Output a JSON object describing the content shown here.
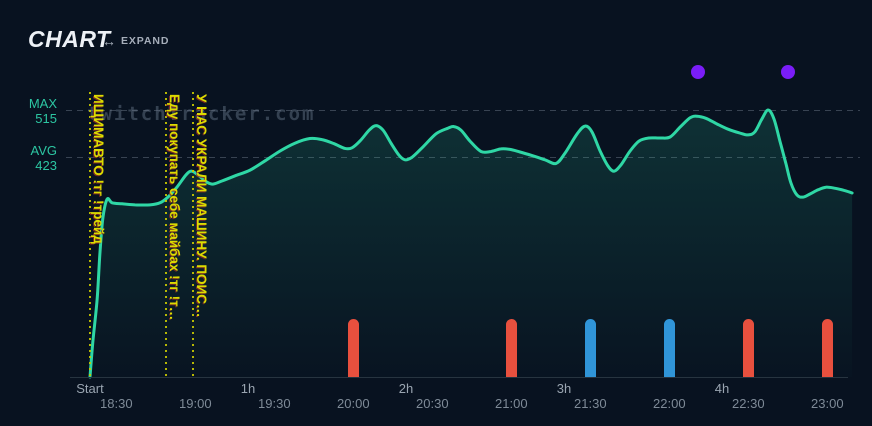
{
  "header": {
    "title": "CHART",
    "expand_label": "EXPAND",
    "expand_icon": "left-right-arrow"
  },
  "watermark": "twitchTracker.com",
  "colors": {
    "background": "#081220",
    "line": "#2fd7a5",
    "teal_label": "#2cc6a2",
    "yellow": "#dcdc00",
    "red": "#e8503e",
    "blue": "#3095d8",
    "purple": "#7a1df7"
  },
  "y_axis": {
    "max_label": "MAX",
    "max_value": "515",
    "avg_label": "AVG",
    "avg_value": "423"
  },
  "x_axis": {
    "hour_ticks": [
      {
        "label": "Start",
        "m": 0
      },
      {
        "label": "1h",
        "m": 60
      },
      {
        "label": "2h",
        "m": 120
      },
      {
        "label": "3h",
        "m": 180
      },
      {
        "label": "4h",
        "m": 240
      }
    ],
    "time_ticks": [
      {
        "label": "18:30",
        "m": 10
      },
      {
        "label": "19:00",
        "m": 40
      },
      {
        "label": "19:30",
        "m": 70
      },
      {
        "label": "20:00",
        "m": 100
      },
      {
        "label": "20:30",
        "m": 130
      },
      {
        "label": "21:00",
        "m": 160
      },
      {
        "label": "21:30",
        "m": 190
      },
      {
        "label": "22:00",
        "m": 220
      },
      {
        "label": "22:30",
        "m": 250
      },
      {
        "label": "23:00",
        "m": 280
      }
    ]
  },
  "annotations": [
    {
      "m": 0,
      "text": "ИЩИМАВТО !тг !трейд"
    },
    {
      "m": 29,
      "text": "Еду покупать себе майбах !тг !т…"
    },
    {
      "m": 39,
      "text": "У НАС УКРАЛИ МАШИНУ. ПОИС…"
    }
  ],
  "markers": [
    {
      "m": 100,
      "color": "red"
    },
    {
      "m": 160,
      "color": "red"
    },
    {
      "m": 190,
      "color": "blue"
    },
    {
      "m": 220,
      "color": "blue"
    },
    {
      "m": 250,
      "color": "red"
    },
    {
      "m": 280,
      "color": "red"
    }
  ],
  "dots": [
    {
      "m": 231
    },
    {
      "m": 265
    }
  ],
  "chart_data": {
    "type": "area",
    "title": "CHART",
    "series_name": "viewers",
    "x_unit": "minutes_from_stream_start",
    "y_unit": "viewers",
    "xlim": [
      0,
      290
    ],
    "ylim": [
      0,
      530
    ],
    "max_line": 515,
    "avg_line": 423,
    "grid": "dashed max/avg horizontal lines",
    "legend": "none",
    "points": [
      [
        0,
        0
      ],
      [
        1.1,
        69
      ],
      [
        2.7,
        149
      ],
      [
        3.8,
        241
      ],
      [
        4.9,
        307
      ],
      [
        6.5,
        343
      ],
      [
        8.4,
        336
      ],
      [
        12.2,
        334
      ],
      [
        17.1,
        332
      ],
      [
        22.8,
        332
      ],
      [
        26.6,
        336
      ],
      [
        29.6,
        347
      ],
      [
        33,
        366
      ],
      [
        36.5,
        390
      ],
      [
        38.7,
        397
      ],
      [
        41.4,
        388
      ],
      [
        44.4,
        376
      ],
      [
        46.7,
        372
      ],
      [
        50.1,
        378
      ],
      [
        55.1,
        388
      ],
      [
        60.8,
        399
      ],
      [
        66.5,
        417
      ],
      [
        72.2,
        436
      ],
      [
        77.8,
        451
      ],
      [
        83.5,
        460
      ],
      [
        88.1,
        458
      ],
      [
        92.7,
        450
      ],
      [
        96.8,
        441
      ],
      [
        99.5,
        442
      ],
      [
        102.5,
        455
      ],
      [
        106,
        476
      ],
      [
        108.6,
        485
      ],
      [
        111.3,
        476
      ],
      [
        114.3,
        451
      ],
      [
        117.3,
        428
      ],
      [
        119.6,
        419
      ],
      [
        122.3,
        424
      ],
      [
        126.5,
        444
      ],
      [
        131.4,
        469
      ],
      [
        136,
        480
      ],
      [
        138.2,
        483
      ],
      [
        140.9,
        476
      ],
      [
        144.3,
        455
      ],
      [
        148.5,
        435
      ],
      [
        152.3,
        435
      ],
      [
        156.1,
        440
      ],
      [
        159.5,
        439
      ],
      [
        163.3,
        434
      ],
      [
        167.9,
        427
      ],
      [
        172.8,
        419
      ],
      [
        177,
        412
      ],
      [
        180.4,
        432
      ],
      [
        185,
        469
      ],
      [
        188,
        484
      ],
      [
        190.6,
        473
      ],
      [
        193.7,
        436
      ],
      [
        196.7,
        407
      ],
      [
        199,
        397
      ],
      [
        201.6,
        409
      ],
      [
        205.1,
        436
      ],
      [
        208.5,
        455
      ],
      [
        212.3,
        461
      ],
      [
        216.5,
        461
      ],
      [
        220.3,
        463
      ],
      [
        224.1,
        482
      ],
      [
        227.9,
        500
      ],
      [
        230.5,
        503
      ],
      [
        233.9,
        499
      ],
      [
        238.1,
        488
      ],
      [
        242.3,
        478
      ],
      [
        246.5,
        471
      ],
      [
        249.9,
        467
      ],
      [
        252.5,
        473
      ],
      [
        255.2,
        498
      ],
      [
        257.5,
        515
      ],
      [
        259.7,
        498
      ],
      [
        262,
        455
      ],
      [
        264.3,
        411
      ],
      [
        266.2,
        374
      ],
      [
        268.5,
        351
      ],
      [
        270.8,
        347
      ],
      [
        273.4,
        353
      ],
      [
        276.5,
        361
      ],
      [
        279.5,
        366
      ],
      [
        283,
        364
      ],
      [
        286.4,
        360
      ],
      [
        289.4,
        355
      ]
    ]
  }
}
